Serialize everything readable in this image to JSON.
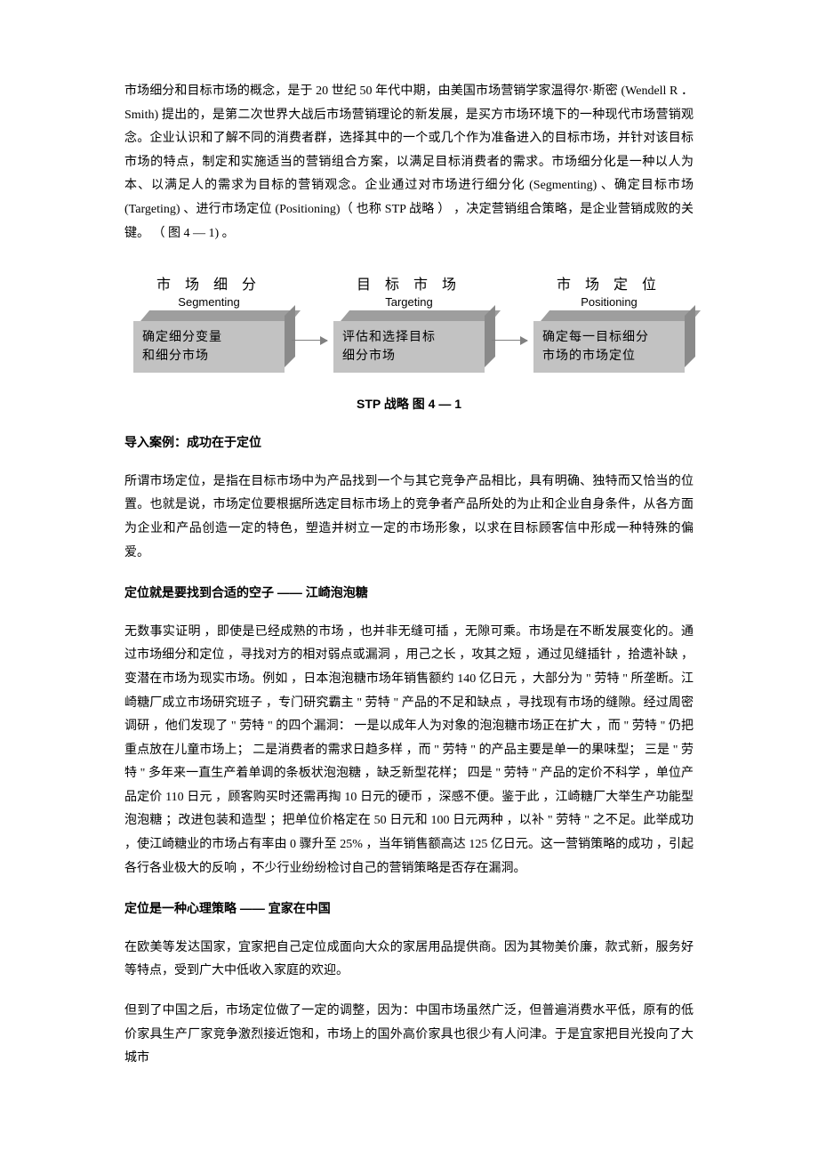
{
  "intro_paragraph": "市场细分和目标市场的概念，是于 20 世纪 50 年代中期，由美国市场营销学家温得尔·斯密 (Wendell R ． Smith) 提出的，是第二次世界大战后市场营销理论的新发展，是买方市场环境下的一种现代市场营销观念。企业认识和了解不同的消费者群，选择其中的一个或几个作为准备进入的目标市场，并针对该目标市场的特点，制定和实施适当的营销组合方案，以满足目标消费者的需求。市场细分化是一种以人为本、以满足人的需求为目标的营销观念。企业通过对市场进行细分化 (Segmenting) 、确定目标市场 (Targeting) 、进行市场定位 (Positioning)（ 也称 STP 战略 ） ，决定营销组合策略，是企业营销成败的关键。 （ 图 4 — 1) 。",
  "diagram": {
    "items": [
      {
        "zh": "市 场 细 分",
        "en": "Segmenting",
        "box": "确定细分变量\n和细分市场"
      },
      {
        "zh": "目 标 市 场",
        "en": "Targeting",
        "box": "评估和选择目标\n细分市场"
      },
      {
        "zh": "市 场 定 位",
        "en": "Positioning",
        "box": "确定每一目标细分\n市场的市场定位"
      }
    ],
    "colors": {
      "box_front": "#c2c2c2",
      "box_top": "#9e9e9e",
      "box_side": "#8a8a8a",
      "arrow": "#808080",
      "text": "#000000"
    }
  },
  "caption": "STP 战略 图 4 — 1",
  "case_heading": "导入案例：成功在于定位",
  "case_intro": "所谓市场定位，是指在目标市场中为产品找到一个与其它竞争产品相比，具有明确、独特而又恰当的位置。也就是说，市场定位要根据所选定目标市场上的竞争者产品所处的为止和企业自身条件，从各方面为企业和产品创造一定的特色，塑造并树立一定的市场形象，以求在目标顾客信中形成一种特殊的偏爱。",
  "sub1_heading": "定位就是要找到合适的空子 —— 江崎泡泡糖",
  "sub1_body": "无数事实证明 ，即使是已经成熟的市场 ，也并非无缝可插 ，无隙可乘。市场是在不断发展变化的。通过市场细分和定位 ，寻找对方的相对弱点或漏洞 ，用己之长 ，攻其之短 ，通过见缝插针 ，拾遗补缺 ，变潜在市场为现实市场。例如 ，日本泡泡糖市场年销售额约 140 亿日元 ，大部分为 \" 劳特 \" 所垄断。江崎糖厂成立市场研究班子 ，专门研究霸主 \" 劳特 \" 产品的不足和缺点 ，寻找现有市场的缝隙。经过周密调研 ，他们发现了 \" 劳特 \" 的四个漏洞：  一是以成年人为对象的泡泡糖市场正在扩大 ，而 \" 劳特 \" 仍把重点放在儿童市场上；  二是消费者的需求日趋多样 ，而 \" 劳特 \" 的产品主要是单一的果味型；  三是 \" 劳特 \" 多年来一直生产着单调的条板状泡泡糖 ，缺乏新型花样；  四是 \" 劳特 \" 产品的定价不科学 ，单位产品定价 110 日元 ，顾客购买时还需再掏 10 日元的硬币 ，深感不便。鉴于此 ，江崎糖厂大举生产功能型泡泡糖 ；改进包装和造型 ；把单位价格定在 50 日元和 100 日元两种 ，以补 \" 劳特 \" 之不足。此举成功 ，使江崎糖业的市场占有率由 0 骤升至 25% ，当年销售额高达 125 亿日元。这一营销策略的成功 ，引起各行各业极大的反响 ，不少行业纷纷检讨自己的营销策略是否存在漏洞。",
  "sub2_heading": "定位是一种心理策略 —— 宜家在中国",
  "sub2_body1": "在欧美等发达国家，宜家把自己定位成面向大众的家居用品提供商。因为其物美价廉，款式新，服务好等特点，受到广大中低收入家庭的欢迎。",
  "sub2_body2": "但到了中国之后，市场定位做了一定的调整，因为：中国市场虽然广泛，但普遍消费水平低，原有的低价家具生产厂家竞争激烈接近饱和，市场上的国外高价家具也很少有人问津。于是宜家把目光投向了大城市"
}
